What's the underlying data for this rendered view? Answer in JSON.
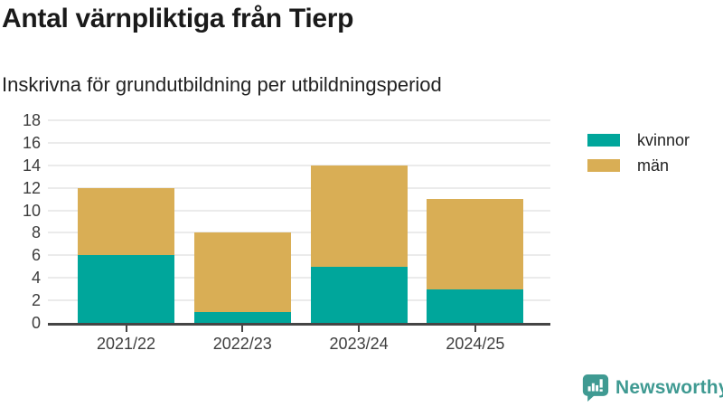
{
  "chart_data": {
    "type": "bar",
    "stacked": true,
    "title": "Antal värnpliktiga från Tierp",
    "subtitle": "Inskrivna för grundutbildning per utbildningsperiod",
    "categories": [
      "2021/22",
      "2022/23",
      "2023/24",
      "2024/25"
    ],
    "series": [
      {
        "name": "kvinnor",
        "color": "#00a69b",
        "values": [
          6,
          1,
          5,
          3
        ]
      },
      {
        "name": "män",
        "color": "#d9ae55",
        "values": [
          6,
          7,
          9,
          8
        ]
      }
    ],
    "stack_totals": [
      12,
      8,
      14,
      11
    ],
    "ylim": [
      0,
      18
    ],
    "yticks": [
      0,
      2,
      4,
      6,
      8,
      10,
      12,
      14,
      16,
      18
    ],
    "grid": true,
    "legend_position": "right"
  },
  "branding": {
    "wordmark": "Newsworthy",
    "icon": "newsworthy-bar-chart-bubble-icon",
    "color": "#3f9a92"
  },
  "style": {
    "text_color": "#1a1a1a",
    "tick_color": "#3d3d3d",
    "axis_color": "#454545",
    "gridline_color": "#ebebeb",
    "background": "#ffffff"
  }
}
